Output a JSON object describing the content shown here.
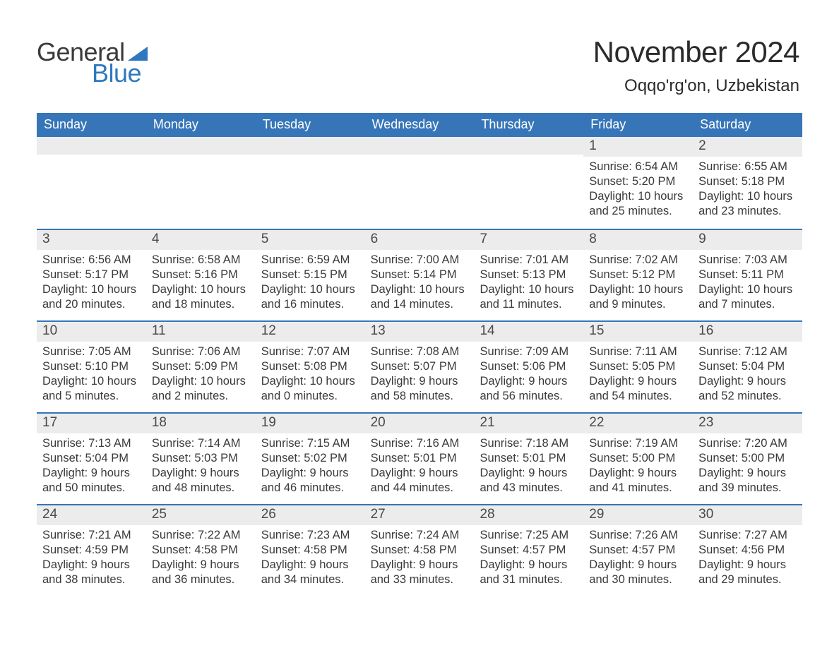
{
  "brand": {
    "word1": "General",
    "word2": "Blue",
    "word1_color": "#3a3a3a",
    "word2_color": "#2f78bf",
    "triangle_color": "#2f78bf"
  },
  "header": {
    "title": "November 2024",
    "location": "Oqqo'rg'on, Uzbekistan",
    "title_fontsize": 42,
    "location_fontsize": 24,
    "text_color": "#2b2b2b"
  },
  "colors": {
    "header_bar_bg": "#3676b8",
    "header_bar_text": "#ffffff",
    "daynum_strip_bg": "#ececec",
    "week_divider": "#3676b8",
    "body_text": "#3a3a3a",
    "page_bg": "#ffffff"
  },
  "days_of_week": [
    "Sunday",
    "Monday",
    "Tuesday",
    "Wednesday",
    "Thursday",
    "Friday",
    "Saturday"
  ],
  "weeks": [
    [
      {
        "n": "",
        "sunrise": "",
        "sunset": "",
        "daylight": ""
      },
      {
        "n": "",
        "sunrise": "",
        "sunset": "",
        "daylight": ""
      },
      {
        "n": "",
        "sunrise": "",
        "sunset": "",
        "daylight": ""
      },
      {
        "n": "",
        "sunrise": "",
        "sunset": "",
        "daylight": ""
      },
      {
        "n": "",
        "sunrise": "",
        "sunset": "",
        "daylight": ""
      },
      {
        "n": "1",
        "sunrise": "Sunrise: 6:54 AM",
        "sunset": "Sunset: 5:20 PM",
        "daylight": "Daylight: 10 hours and 25 minutes."
      },
      {
        "n": "2",
        "sunrise": "Sunrise: 6:55 AM",
        "sunset": "Sunset: 5:18 PM",
        "daylight": "Daylight: 10 hours and 23 minutes."
      }
    ],
    [
      {
        "n": "3",
        "sunrise": "Sunrise: 6:56 AM",
        "sunset": "Sunset: 5:17 PM",
        "daylight": "Daylight: 10 hours and 20 minutes."
      },
      {
        "n": "4",
        "sunrise": "Sunrise: 6:58 AM",
        "sunset": "Sunset: 5:16 PM",
        "daylight": "Daylight: 10 hours and 18 minutes."
      },
      {
        "n": "5",
        "sunrise": "Sunrise: 6:59 AM",
        "sunset": "Sunset: 5:15 PM",
        "daylight": "Daylight: 10 hours and 16 minutes."
      },
      {
        "n": "6",
        "sunrise": "Sunrise: 7:00 AM",
        "sunset": "Sunset: 5:14 PM",
        "daylight": "Daylight: 10 hours and 14 minutes."
      },
      {
        "n": "7",
        "sunrise": "Sunrise: 7:01 AM",
        "sunset": "Sunset: 5:13 PM",
        "daylight": "Daylight: 10 hours and 11 minutes."
      },
      {
        "n": "8",
        "sunrise": "Sunrise: 7:02 AM",
        "sunset": "Sunset: 5:12 PM",
        "daylight": "Daylight: 10 hours and 9 minutes."
      },
      {
        "n": "9",
        "sunrise": "Sunrise: 7:03 AM",
        "sunset": "Sunset: 5:11 PM",
        "daylight": "Daylight: 10 hours and 7 minutes."
      }
    ],
    [
      {
        "n": "10",
        "sunrise": "Sunrise: 7:05 AM",
        "sunset": "Sunset: 5:10 PM",
        "daylight": "Daylight: 10 hours and 5 minutes."
      },
      {
        "n": "11",
        "sunrise": "Sunrise: 7:06 AM",
        "sunset": "Sunset: 5:09 PM",
        "daylight": "Daylight: 10 hours and 2 minutes."
      },
      {
        "n": "12",
        "sunrise": "Sunrise: 7:07 AM",
        "sunset": "Sunset: 5:08 PM",
        "daylight": "Daylight: 10 hours and 0 minutes."
      },
      {
        "n": "13",
        "sunrise": "Sunrise: 7:08 AM",
        "sunset": "Sunset: 5:07 PM",
        "daylight": "Daylight: 9 hours and 58 minutes."
      },
      {
        "n": "14",
        "sunrise": "Sunrise: 7:09 AM",
        "sunset": "Sunset: 5:06 PM",
        "daylight": "Daylight: 9 hours and 56 minutes."
      },
      {
        "n": "15",
        "sunrise": "Sunrise: 7:11 AM",
        "sunset": "Sunset: 5:05 PM",
        "daylight": "Daylight: 9 hours and 54 minutes."
      },
      {
        "n": "16",
        "sunrise": "Sunrise: 7:12 AM",
        "sunset": "Sunset: 5:04 PM",
        "daylight": "Daylight: 9 hours and 52 minutes."
      }
    ],
    [
      {
        "n": "17",
        "sunrise": "Sunrise: 7:13 AM",
        "sunset": "Sunset: 5:04 PM",
        "daylight": "Daylight: 9 hours and 50 minutes."
      },
      {
        "n": "18",
        "sunrise": "Sunrise: 7:14 AM",
        "sunset": "Sunset: 5:03 PM",
        "daylight": "Daylight: 9 hours and 48 minutes."
      },
      {
        "n": "19",
        "sunrise": "Sunrise: 7:15 AM",
        "sunset": "Sunset: 5:02 PM",
        "daylight": "Daylight: 9 hours and 46 minutes."
      },
      {
        "n": "20",
        "sunrise": "Sunrise: 7:16 AM",
        "sunset": "Sunset: 5:01 PM",
        "daylight": "Daylight: 9 hours and 44 minutes."
      },
      {
        "n": "21",
        "sunrise": "Sunrise: 7:18 AM",
        "sunset": "Sunset: 5:01 PM",
        "daylight": "Daylight: 9 hours and 43 minutes."
      },
      {
        "n": "22",
        "sunrise": "Sunrise: 7:19 AM",
        "sunset": "Sunset: 5:00 PM",
        "daylight": "Daylight: 9 hours and 41 minutes."
      },
      {
        "n": "23",
        "sunrise": "Sunrise: 7:20 AM",
        "sunset": "Sunset: 5:00 PM",
        "daylight": "Daylight: 9 hours and 39 minutes."
      }
    ],
    [
      {
        "n": "24",
        "sunrise": "Sunrise: 7:21 AM",
        "sunset": "Sunset: 4:59 PM",
        "daylight": "Daylight: 9 hours and 38 minutes."
      },
      {
        "n": "25",
        "sunrise": "Sunrise: 7:22 AM",
        "sunset": "Sunset: 4:58 PM",
        "daylight": "Daylight: 9 hours and 36 minutes."
      },
      {
        "n": "26",
        "sunrise": "Sunrise: 7:23 AM",
        "sunset": "Sunset: 4:58 PM",
        "daylight": "Daylight: 9 hours and 34 minutes."
      },
      {
        "n": "27",
        "sunrise": "Sunrise: 7:24 AM",
        "sunset": "Sunset: 4:58 PM",
        "daylight": "Daylight: 9 hours and 33 minutes."
      },
      {
        "n": "28",
        "sunrise": "Sunrise: 7:25 AM",
        "sunset": "Sunset: 4:57 PM",
        "daylight": "Daylight: 9 hours and 31 minutes."
      },
      {
        "n": "29",
        "sunrise": "Sunrise: 7:26 AM",
        "sunset": "Sunset: 4:57 PM",
        "daylight": "Daylight: 9 hours and 30 minutes."
      },
      {
        "n": "30",
        "sunrise": "Sunrise: 7:27 AM",
        "sunset": "Sunset: 4:56 PM",
        "daylight": "Daylight: 9 hours and 29 minutes."
      }
    ]
  ]
}
